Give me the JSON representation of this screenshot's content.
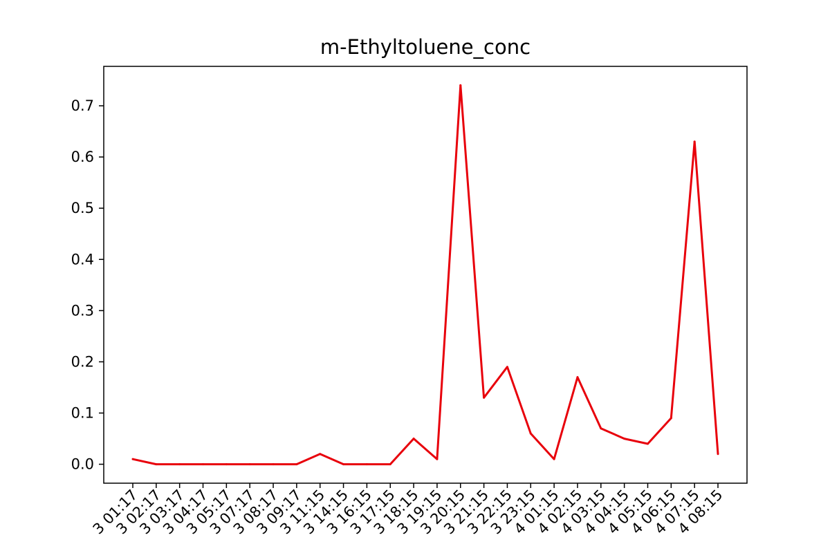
{
  "chart_data": {
    "type": "line",
    "title": "m-Ethyltoluene_conc",
    "xlabel": "",
    "ylabel": "",
    "x": [
      "3 01:17",
      "3 02:17",
      "3 03:17",
      "3 04:17",
      "3 05:17",
      "3 07:17",
      "3 08:17",
      "3 09:17",
      "3 11:15",
      "3 14:15",
      "3 16:15",
      "3 17:15",
      "3 18:15",
      "3 19:15",
      "3 20:15",
      "3 21:15",
      "3 22:15",
      "3 23:15",
      "4 01:15",
      "4 02:15",
      "4 03:15",
      "4 04:15",
      "4 05:15",
      "4 06:15",
      "4 07:15",
      "4 08:15"
    ],
    "series": [
      {
        "color": "#e8000b",
        "values": [
          0.01,
          0.0,
          0.0,
          0.0,
          0.0,
          0.0,
          0.0,
          0.0,
          0.02,
          0.0,
          0.0,
          0.0,
          0.05,
          0.01,
          0.74,
          0.13,
          0.19,
          0.06,
          0.01,
          0.17,
          0.07,
          0.05,
          0.04,
          0.09,
          0.63,
          0.02
        ]
      }
    ],
    "yticks": [
      "0.0",
      "0.1",
      "0.2",
      "0.3",
      "0.4",
      "0.5",
      "0.6",
      "0.7"
    ],
    "ylim": [
      -0.037,
      0.777
    ],
    "grid": false,
    "legend": "none"
  }
}
